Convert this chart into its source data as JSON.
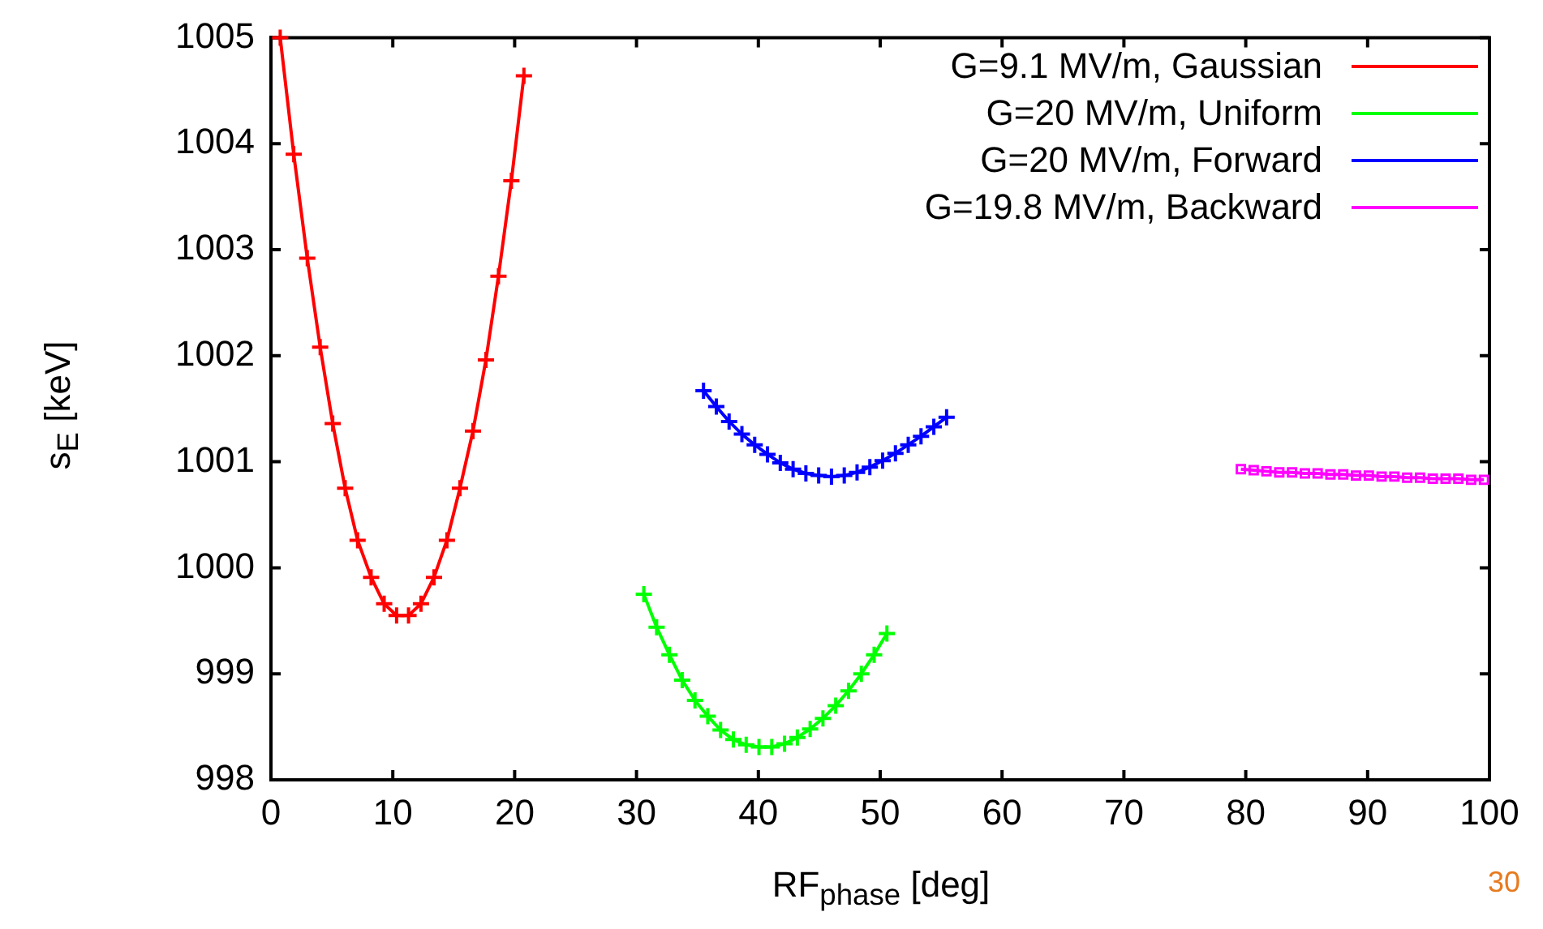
{
  "chart_data": {
    "type": "line",
    "xlabel": "RF$_{phase}$ [deg]",
    "ylabel": "s$_{E}$ [keV]",
    "xlim": [
      0,
      100
    ],
    "xticks": [
      0,
      10,
      20,
      30,
      40,
      50,
      60,
      70,
      80,
      90,
      100
    ],
    "ylim": [
      998,
      1005
    ],
    "yticks": [
      998,
      999,
      1000,
      1001,
      1002,
      1003,
      1004,
      1005
    ],
    "grid": false,
    "legend": "top right",
    "line_style": "solid",
    "annotations": [
      "30"
    ],
    "series": [
      {
        "name": "G=9.1 MV/m, Gaussian",
        "color": "#ff0000",
        "marker": "cross",
        "x": [
          0.76,
          1.87,
          2.98,
          4.04,
          5.07,
          6.09,
          7.11,
          8.22,
          9.29,
          10.31,
          11.29,
          12.31,
          13.38,
          14.44,
          15.51,
          16.58,
          17.64,
          18.67,
          19.73,
          20.76
        ],
        "values": [
          1005.0,
          1003.9,
          1002.92,
          1002.08,
          1001.36,
          1000.75,
          1000.26,
          999.91,
          999.66,
          999.55,
          999.55,
          999.66,
          999.91,
          1000.26,
          1000.75,
          1001.29,
          1001.96,
          1002.75,
          1003.65,
          1004.64
        ]
      },
      {
        "name": "G=20 MV/m, Uniform",
        "color": "#00ff00",
        "marker": "cross",
        "x": [
          30.6,
          31.65,
          32.7,
          33.75,
          34.8,
          35.85,
          36.9,
          37.95,
          39.0,
          40.05,
          41.1,
          42.15,
          43.2,
          44.25,
          45.3,
          46.35,
          47.4,
          48.45,
          49.5,
          50.55
        ],
        "values": [
          999.75,
          999.44,
          999.18,
          998.94,
          998.75,
          998.6,
          998.47,
          998.38,
          998.33,
          998.31,
          998.31,
          998.34,
          998.4,
          998.48,
          998.58,
          998.7,
          998.84,
          999.0,
          999.18,
          999.38
        ]
      },
      {
        "name": "G=20 MV/m, Forward",
        "color": "#0000ff",
        "marker": "cross",
        "x": [
          35.5,
          36.55,
          37.6,
          38.65,
          39.7,
          40.75,
          41.8,
          42.85,
          43.9,
          44.95,
          46.0,
          47.05,
          48.1,
          49.15,
          50.2,
          51.25,
          52.3,
          53.35,
          54.4,
          55.45
        ],
        "values": [
          1001.67,
          1001.52,
          1001.38,
          1001.26,
          1001.16,
          1001.07,
          1000.99,
          1000.93,
          1000.89,
          1000.87,
          1000.86,
          1000.87,
          1000.9,
          1000.95,
          1001.01,
          1001.08,
          1001.16,
          1001.24,
          1001.33,
          1001.42
        ]
      },
      {
        "name": "G=19.8 MV/m, Backward",
        "color": "#ff00ff",
        "marker": "square",
        "x": [
          79.6,
          80.65,
          81.7,
          82.75,
          83.8,
          84.85,
          85.9,
          86.95,
          88.0,
          89.05,
          90.1,
          91.15,
          92.2,
          93.25,
          94.3,
          95.35,
          96.4,
          97.45,
          98.5,
          99.55
        ],
        "values": [
          1000.93,
          1000.92,
          1000.91,
          1000.9,
          1000.9,
          1000.89,
          1000.89,
          1000.88,
          1000.88,
          1000.87,
          1000.87,
          1000.86,
          1000.86,
          1000.85,
          1000.85,
          1000.84,
          1000.84,
          1000.84,
          1000.83,
          1000.83
        ]
      }
    ]
  }
}
